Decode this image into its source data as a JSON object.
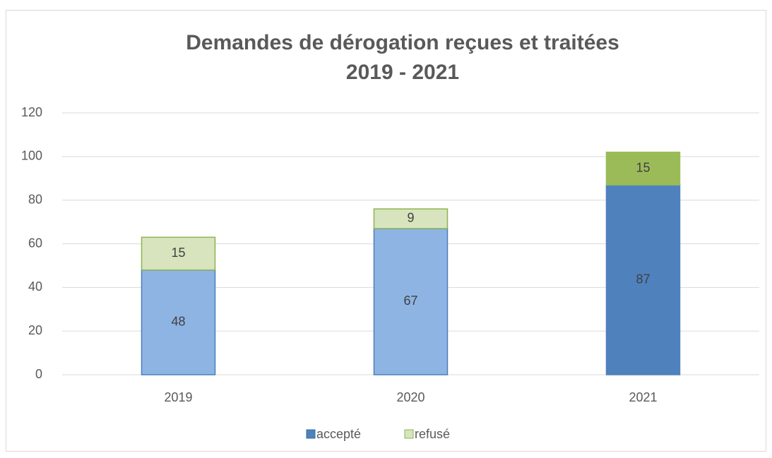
{
  "chart_data": {
    "type": "stacked_bar",
    "title": [
      "Demandes de dérogation reçues et traitées",
      "2019 - 2021"
    ],
    "categories": [
      "2019",
      "2020",
      "2021"
    ],
    "series": [
      {
        "name": "accepté",
        "color": "#4f81bd",
        "bar_colors": [
          "#8eb4e3",
          "#8eb4e3",
          "#4f81bd"
        ],
        "values": [
          48,
          67,
          87
        ]
      },
      {
        "name": "refusé",
        "color": "#d7e4bd",
        "bar_colors": [
          "#d7e4bd",
          "#d7e4bd",
          "#9bbb59"
        ],
        "values": [
          15,
          9,
          15
        ]
      }
    ],
    "ylim": [
      0,
      120
    ],
    "yticks": [
      0,
      20,
      40,
      60,
      80,
      100,
      120
    ],
    "grid": true,
    "legend": "bottom"
  }
}
